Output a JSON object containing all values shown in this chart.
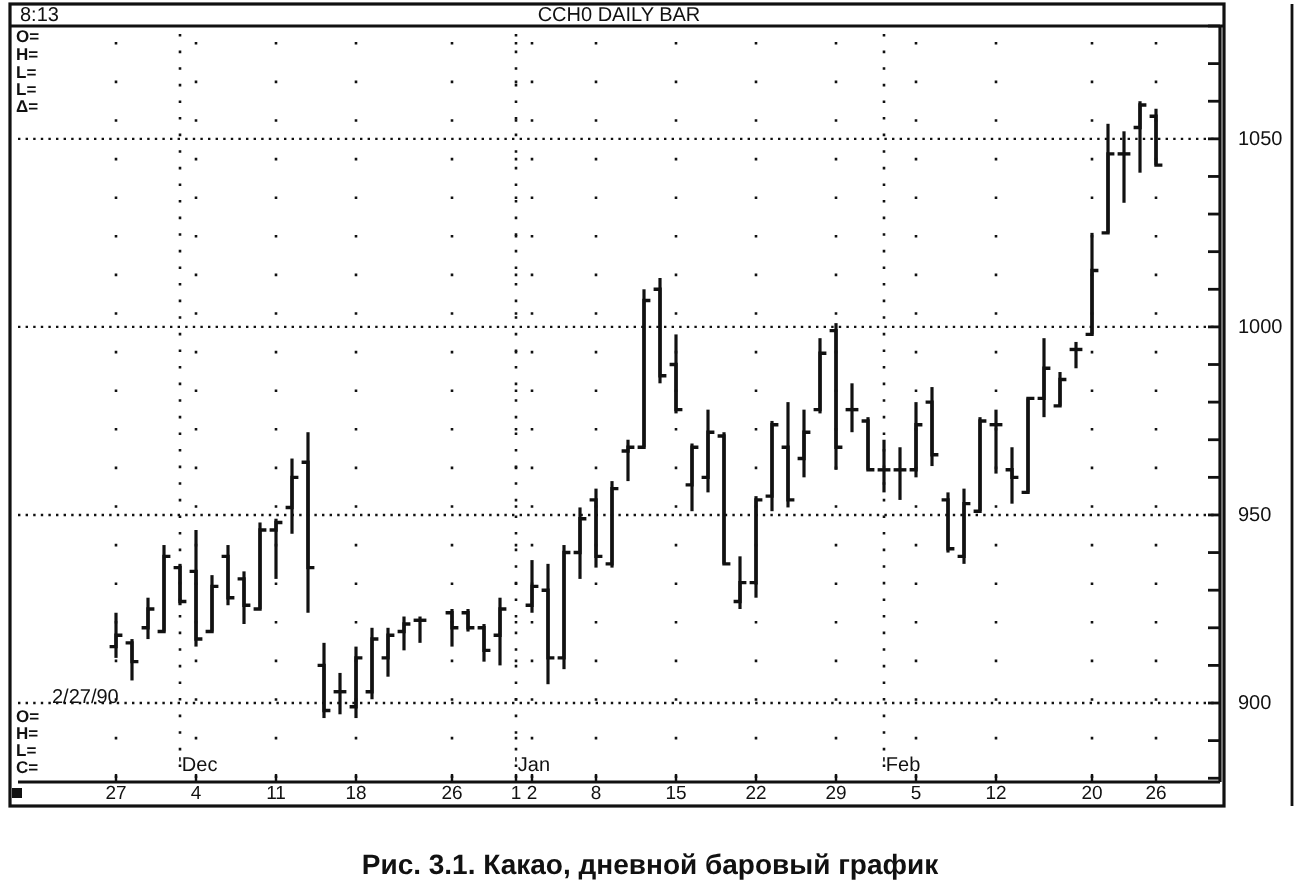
{
  "chart_data": {
    "type": "candlestick",
    "title": "CCH0 DAILY BAR",
    "color": "#111111",
    "categories": [
      "27",
      null,
      null,
      null,
      null,
      "4",
      null,
      null,
      null,
      null,
      "11",
      null,
      null,
      null,
      null,
      "18",
      null,
      null,
      null,
      null,
      null,
      "26",
      null,
      null,
      null,
      "1",
      "2",
      null,
      null,
      null,
      "8",
      null,
      null,
      null,
      null,
      "15",
      null,
      null,
      null,
      null,
      "22",
      null,
      null,
      null,
      null,
      "29",
      null,
      null,
      null,
      null,
      "5",
      null,
      null,
      null,
      null,
      "12",
      null,
      null,
      null,
      null,
      null,
      "20",
      null,
      null,
      null,
      "26"
    ],
    "ohlc": [
      [
        915,
        924,
        912,
        918
      ],
      [
        916,
        917,
        906,
        911
      ],
      [
        920,
        928,
        917,
        925
      ],
      [
        919,
        942,
        919,
        939
      ],
      [
        936,
        937,
        926,
        927
      ],
      [
        935,
        946,
        915,
        917
      ],
      [
        919,
        934,
        919,
        931
      ],
      [
        939,
        942,
        926,
        928
      ],
      [
        933,
        935,
        921,
        926
      ],
      [
        925,
        948,
        925,
        946
      ],
      [
        946,
        949,
        933,
        948
      ],
      [
        952,
        965,
        945,
        960
      ],
      [
        964,
        972,
        924,
        936
      ],
      [
        910,
        916,
        896,
        898
      ],
      [
        903,
        908,
        897,
        903
      ],
      [
        899,
        915,
        896,
        912
      ],
      [
        903,
        920,
        901,
        917
      ],
      [
        912,
        920,
        907,
        918
      ],
      [
        919,
        923,
        914,
        921
      ],
      [
        922,
        923,
        916,
        922
      ],
      null,
      [
        924,
        925,
        915,
        920
      ],
      [
        924,
        925,
        919,
        920
      ],
      [
        920,
        921,
        911,
        914
      ],
      [
        918,
        928,
        910,
        925
      ],
      null,
      [
        926,
        938,
        924,
        931
      ],
      [
        930,
        937,
        905,
        912
      ],
      [
        912,
        942,
        909,
        940
      ],
      [
        940,
        952,
        933,
        949
      ],
      [
        954,
        957,
        936,
        939
      ],
      [
        937,
        959,
        936,
        957
      ],
      [
        967,
        970,
        959,
        968
      ],
      [
        968,
        1010,
        968,
        1007
      ],
      [
        1010,
        1013,
        985,
        987
      ],
      [
        990,
        998,
        977,
        978
      ],
      [
        958,
        969,
        951,
        968
      ],
      [
        960,
        978,
        956,
        972
      ],
      [
        971,
        972,
        937,
        937
      ],
      [
        927,
        939,
        925,
        932
      ],
      [
        932,
        955,
        928,
        954
      ],
      [
        955,
        975,
        951,
        974
      ],
      [
        968,
        980,
        952,
        954
      ],
      [
        965,
        978,
        960,
        972
      ],
      [
        978,
        997,
        977,
        993
      ],
      [
        999,
        1001,
        962,
        968
      ],
      [
        978,
        985,
        972,
        978
      ],
      [
        975,
        976,
        962,
        962
      ],
      [
        962,
        970,
        956,
        962
      ],
      [
        962,
        968,
        954,
        962
      ],
      [
        962,
        980,
        960,
        974
      ],
      [
        980,
        984,
        963,
        966
      ],
      [
        954,
        956,
        940,
        941
      ],
      [
        939,
        957,
        937,
        953
      ],
      [
        951,
        976,
        951,
        975
      ],
      [
        974,
        978,
        961,
        974
      ],
      [
        962,
        968,
        953,
        960
      ],
      [
        956,
        981,
        956,
        981
      ],
      [
        981,
        997,
        976,
        989
      ],
      [
        979,
        988,
        979,
        986
      ],
      [
        994,
        996,
        989,
        994
      ],
      [
        998,
        1025,
        998,
        1015
      ],
      [
        1025,
        1054,
        1025,
        1046
      ],
      [
        1046,
        1052,
        1033,
        1046
      ],
      [
        1053,
        1060,
        1041,
        1059
      ],
      [
        1056,
        1058,
        1043,
        1043
      ]
    ],
    "ylim": [
      879,
      1080
    ],
    "yticks": [
      900,
      950,
      1000,
      1050
    ],
    "grid": true,
    "annotations": [
      "8:13",
      "O=",
      "H=",
      "L=",
      "L=",
      "Δ=",
      "O=",
      "H=",
      "L=",
      "C=",
      "2/27/90",
      "'Dec",
      "'Jan",
      "'Feb",
      "Рис. 3.1. Какао, дневной баровый график"
    ]
  }
}
